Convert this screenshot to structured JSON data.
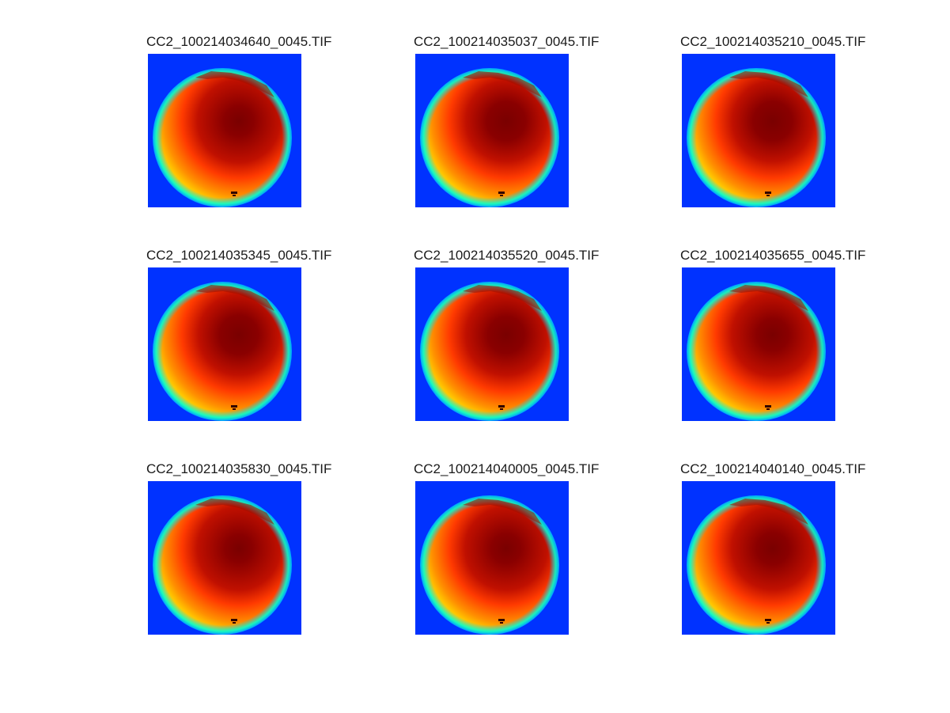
{
  "figure": {
    "background_color": "#ffffff",
    "colormap": "jet",
    "panels": [
      {
        "title": "CC2_100214034640_0045.TIF",
        "core_brightness": 0.65
      },
      {
        "title": "CC2_100214035037_0045.TIF",
        "core_brightness": 0.85
      },
      {
        "title": "CC2_100214035210_0045.TIF",
        "core_brightness": 0.85
      },
      {
        "title": "CC2_100214035345_0045.TIF",
        "core_brightness": 0.85
      },
      {
        "title": "CC2_100214035520_0045.TIF",
        "core_brightness": 0.8
      },
      {
        "title": "CC2_100214035655_0045.TIF",
        "core_brightness": 0.7
      },
      {
        "title": "CC2_100214035830_0045.TIF",
        "core_brightness": 0.6
      },
      {
        "title": "CC2_100214040005_0045.TIF",
        "core_brightness": 0.65
      },
      {
        "title": "CC2_100214040140_0045.TIF",
        "core_brightness": 0.7
      }
    ]
  }
}
